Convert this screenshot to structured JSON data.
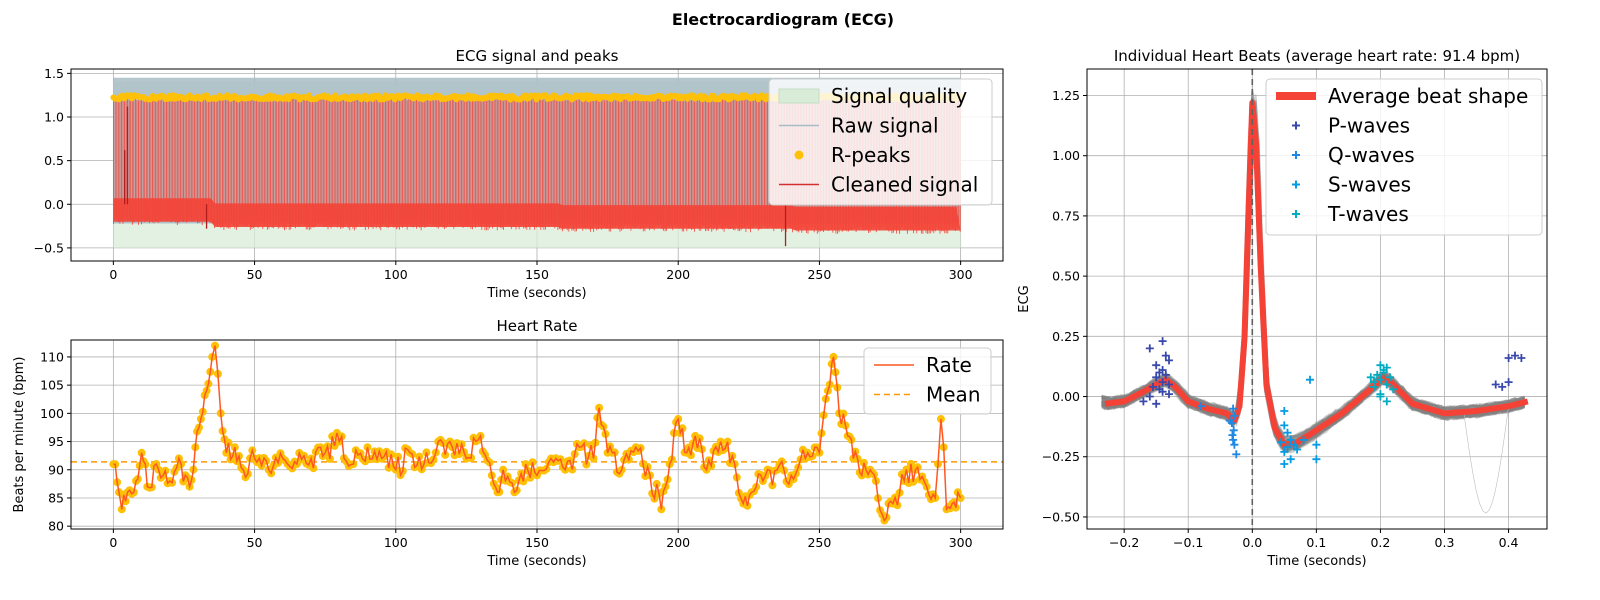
{
  "suptitle": "Electrocardiogram (ECG)",
  "colors": {
    "signal_quality": "#d8ecd8",
    "raw_signal": "#a8bcc6",
    "r_peaks": "#ffc107",
    "cleaned_signal": "#f44336",
    "rate": "#ff5722",
    "mean": "#ff9800",
    "avg_beat": "#f44336",
    "beats": "#808080",
    "p_waves": "#3949ab",
    "q_waves": "#1e88e5",
    "s_waves": "#039be5",
    "t_waves": "#00acc1"
  },
  "chart_data": [
    {
      "id": "ecg",
      "type": "line",
      "title": "ECG signal and peaks",
      "xlabel": "Time (seconds)",
      "ylabel": "",
      "xlim": [
        -15,
        315
      ],
      "ylim": [
        -0.65,
        1.55
      ],
      "xticks": [
        0,
        50,
        100,
        150,
        200,
        250,
        300
      ],
      "yticks": [
        -0.5,
        0.0,
        0.5,
        1.0,
        1.5
      ],
      "xtick_labels": [
        "0",
        "50",
        "100",
        "150",
        "200",
        "250",
        "300"
      ],
      "ytick_labels": [
        "−0.5",
        "0.0",
        "0.5",
        "1.0",
        "1.5"
      ],
      "grid": true,
      "legend_position": "upper right",
      "duration_seconds": 300,
      "signal_quality_range": [
        -0.5,
        1.4
      ],
      "raw_signal_band": [
        -0.2,
        1.45
      ],
      "cleaned_baseline_segments": [
        {
          "x": [
            0,
            35
          ],
          "y": -0.04
        },
        {
          "x": [
            35,
            158
          ],
          "y": -0.1
        },
        {
          "x": [
            158,
            240
          ],
          "y": -0.12
        },
        {
          "x": [
            240,
            300
          ],
          "y": -0.14
        }
      ],
      "r_peak_level": 1.25,
      "mean_rate_bpm": 91.4,
      "outliers": [
        {
          "x": 4,
          "y": 0.62
        },
        {
          "x": 5,
          "y": 1.12
        },
        {
          "x": 33,
          "y": -0.28
        },
        {
          "x": 238,
          "y": -0.48
        }
      ],
      "legend": [
        "Signal quality",
        "Raw signal",
        "R-peaks",
        "Cleaned signal"
      ]
    },
    {
      "id": "hr",
      "type": "line",
      "title": "Heart Rate",
      "xlabel": "Time (seconds)",
      "ylabel": "Beats per minute (bpm)",
      "xlim": [
        -15,
        315
      ],
      "ylim": [
        79.5,
        113
      ],
      "xticks": [
        0,
        50,
        100,
        150,
        200,
        250,
        300
      ],
      "yticks": [
        80,
        85,
        90,
        95,
        100,
        105,
        110
      ],
      "xtick_labels": [
        "0",
        "50",
        "100",
        "150",
        "200",
        "250",
        "300"
      ],
      "ytick_labels": [
        "80",
        "85",
        "90",
        "95",
        "100",
        "105",
        "110"
      ],
      "grid": true,
      "legend_position": "upper right",
      "mean": 91.4,
      "anchors": [
        [
          0,
          91
        ],
        [
          2,
          86
        ],
        [
          3,
          83
        ],
        [
          5,
          86
        ],
        [
          8,
          88
        ],
        [
          10,
          93
        ],
        [
          12,
          87
        ],
        [
          16,
          90
        ],
        [
          20,
          88
        ],
        [
          24,
          91
        ],
        [
          27,
          87
        ],
        [
          29,
          94
        ],
        [
          31,
          99
        ],
        [
          33,
          104
        ],
        [
          35,
          110
        ],
        [
          36,
          112
        ],
        [
          37,
          107
        ],
        [
          38,
          100
        ],
        [
          40,
          93
        ],
        [
          43,
          94
        ],
        [
          46,
          90
        ],
        [
          50,
          92
        ],
        [
          55,
          90
        ],
        [
          60,
          92
        ],
        [
          65,
          91
        ],
        [
          70,
          92
        ],
        [
          75,
          93
        ],
        [
          80,
          95
        ],
        [
          85,
          91
        ],
        [
          90,
          94
        ],
        [
          95,
          92
        ],
        [
          100,
          90
        ],
        [
          105,
          93
        ],
        [
          110,
          91
        ],
        [
          115,
          95
        ],
        [
          120,
          94
        ],
        [
          125,
          92
        ],
        [
          130,
          96
        ],
        [
          134,
          89
        ],
        [
          136,
          86
        ],
        [
          138,
          90
        ],
        [
          142,
          86
        ],
        [
          146,
          91
        ],
        [
          150,
          89
        ],
        [
          155,
          92
        ],
        [
          160,
          90
        ],
        [
          165,
          94
        ],
        [
          170,
          92
        ],
        [
          172,
          101
        ],
        [
          175,
          93
        ],
        [
          180,
          90
        ],
        [
          185,
          94
        ],
        [
          190,
          89
        ],
        [
          194,
          83
        ],
        [
          197,
          91
        ],
        [
          200,
          99
        ],
        [
          203,
          93
        ],
        [
          206,
          96
        ],
        [
          210,
          90
        ],
        [
          215,
          95
        ],
        [
          220,
          91
        ],
        [
          223,
          84
        ],
        [
          226,
          86
        ],
        [
          230,
          88
        ],
        [
          235,
          90
        ],
        [
          240,
          89
        ],
        [
          245,
          92
        ],
        [
          250,
          93
        ],
        [
          253,
          104
        ],
        [
          255,
          110
        ],
        [
          257,
          100
        ],
        [
          260,
          96
        ],
        [
          262,
          92
        ],
        [
          265,
          89
        ],
        [
          268,
          90
        ],
        [
          270,
          88
        ],
        [
          273,
          81
        ],
        [
          276,
          84
        ],
        [
          280,
          88
        ],
        [
          284,
          90
        ],
        [
          288,
          87
        ],
        [
          291,
          85
        ],
        [
          292,
          91
        ],
        [
          293,
          99
        ],
        [
          294,
          94
        ],
        [
          295,
          83
        ],
        [
          297,
          84
        ],
        [
          299,
          86
        ],
        [
          300,
          85
        ]
      ],
      "legend": [
        "Rate",
        "Mean"
      ]
    },
    {
      "id": "beats",
      "type": "line",
      "title": "Individual Heart Beats (average heart rate: 91.4 bpm)",
      "xlabel": "Time (seconds)",
      "ylabel": "ECG",
      "xlim": [
        -0.258,
        0.46
      ],
      "ylim": [
        -0.55,
        1.36
      ],
      "xticks": [
        -0.2,
        -0.1,
        0.0,
        0.1,
        0.2,
        0.3,
        0.4
      ],
      "yticks": [
        -0.5,
        -0.25,
        0.0,
        0.25,
        0.5,
        0.75,
        1.0,
        1.25
      ],
      "xtick_labels": [
        "−0.2",
        "−0.1",
        "0.0",
        "0.1",
        "0.2",
        "0.3",
        "0.4"
      ],
      "ytick_labels": [
        "−0.50",
        "−0.25",
        "0.00",
        "0.25",
        "0.50",
        "0.75",
        "1.00",
        "1.25"
      ],
      "grid": true,
      "legend_position": "upper right",
      "average_beat": [
        [
          -0.23,
          -0.03
        ],
        [
          -0.2,
          -0.02
        ],
        [
          -0.17,
          0.02
        ],
        [
          -0.15,
          0.05
        ],
        [
          -0.135,
          0.07
        ],
        [
          -0.12,
          0.04
        ],
        [
          -0.1,
          -0.02
        ],
        [
          -0.07,
          -0.05
        ],
        [
          -0.04,
          -0.07
        ],
        [
          -0.028,
          -0.1
        ],
        [
          -0.02,
          -0.04
        ],
        [
          -0.012,
          0.25
        ],
        [
          -0.006,
          0.75
        ],
        [
          0.0,
          1.22
        ],
        [
          0.006,
          1.05
        ],
        [
          0.013,
          0.55
        ],
        [
          0.022,
          0.05
        ],
        [
          0.035,
          -0.13
        ],
        [
          0.05,
          -0.2
        ],
        [
          0.07,
          -0.19
        ],
        [
          0.1,
          -0.14
        ],
        [
          0.14,
          -0.07
        ],
        [
          0.18,
          0.02
        ],
        [
          0.205,
          0.08
        ],
        [
          0.22,
          0.05
        ],
        [
          0.25,
          -0.03
        ],
        [
          0.3,
          -0.07
        ],
        [
          0.35,
          -0.06
        ],
        [
          0.4,
          -0.04
        ],
        [
          0.43,
          -0.02
        ]
      ],
      "p_waves": [
        [
          -0.14,
          0.23
        ],
        [
          -0.16,
          0.2
        ],
        [
          -0.135,
          0.17
        ],
        [
          -0.13,
          0.15
        ],
        [
          -0.15,
          0.13
        ],
        [
          -0.14,
          0.11
        ],
        [
          -0.145,
          0.1
        ],
        [
          -0.135,
          0.09
        ],
        [
          -0.15,
          0.08
        ],
        [
          -0.14,
          0.06
        ],
        [
          -0.13,
          0.05
        ],
        [
          -0.155,
          0.04
        ],
        [
          -0.145,
          0.03
        ],
        [
          -0.14,
          0.02
        ],
        [
          -0.13,
          0.01
        ],
        [
          -0.16,
          0.0
        ],
        [
          -0.17,
          -0.02
        ],
        [
          -0.15,
          -0.03
        ],
        [
          0.38,
          0.05
        ],
        [
          0.4,
          0.16
        ],
        [
          0.41,
          0.17
        ],
        [
          0.42,
          0.16
        ],
        [
          0.4,
          0.06
        ],
        [
          0.39,
          0.04
        ]
      ],
      "q_waves": [
        [
          -0.03,
          -0.05
        ],
        [
          -0.028,
          -0.08
        ],
        [
          -0.032,
          -0.11
        ],
        [
          -0.029,
          -0.14
        ],
        [
          -0.031,
          -0.16
        ],
        [
          -0.03,
          -0.18
        ],
        [
          -0.028,
          -0.2
        ],
        [
          -0.025,
          -0.24
        ],
        [
          -0.08,
          -0.04
        ],
        [
          -0.035,
          -0.1
        ]
      ],
      "s_waves": [
        [
          0.05,
          -0.06
        ],
        [
          0.05,
          -0.12
        ],
        [
          0.055,
          -0.15
        ],
        [
          0.06,
          -0.18
        ],
        [
          0.045,
          -0.19
        ],
        [
          0.055,
          -0.21
        ],
        [
          0.065,
          -0.2
        ],
        [
          0.05,
          -0.23
        ],
        [
          0.07,
          -0.22
        ],
        [
          0.06,
          -0.26
        ],
        [
          0.05,
          -0.28
        ],
        [
          0.1,
          -0.2
        ],
        [
          0.1,
          -0.26
        ],
        [
          0.09,
          0.07
        ],
        [
          0.08,
          -0.18
        ]
      ],
      "t_waves": [
        [
          0.2,
          0.13
        ],
        [
          0.21,
          0.12
        ],
        [
          0.205,
          0.1
        ],
        [
          0.195,
          0.09
        ],
        [
          0.215,
          0.08
        ],
        [
          0.2,
          0.07
        ],
        [
          0.21,
          0.05
        ],
        [
          0.19,
          0.04
        ],
        [
          0.22,
          0.03
        ],
        [
          0.2,
          0.01
        ],
        [
          0.21,
          -0.02
        ],
        [
          0.19,
          0.06
        ],
        [
          0.185,
          0.08
        ],
        [
          0.205,
          0.11
        ],
        [
          0.2,
          0.0
        ]
      ],
      "legend": [
        "Average beat shape",
        "P-waves",
        "Q-waves",
        "S-waves",
        "T-waves"
      ]
    }
  ]
}
